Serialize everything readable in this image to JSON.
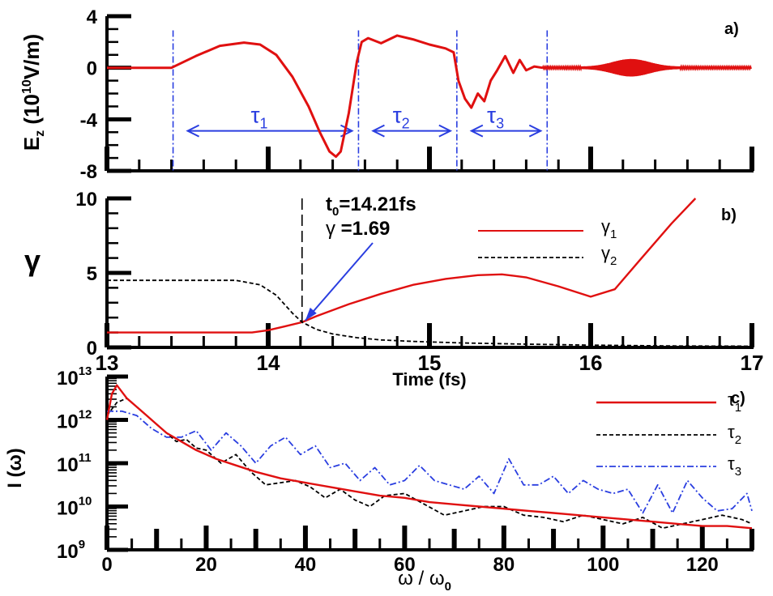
{
  "colors": {
    "red": "#e01010",
    "blue": "#2a3ee0",
    "black": "#000000"
  },
  "chart_data": [
    {
      "type": "line",
      "panel_label": "a)",
      "ylabel": "E_z (10^10 V/m)",
      "ylabel_parts": {
        "main": "E",
        "sub": "z",
        "open": "(10",
        "sup": "10",
        "close": "V/m)"
      },
      "xlim": [
        13,
        17
      ],
      "ylim": [
        -8,
        4
      ],
      "yticks": [
        "-8",
        "-4",
        "0",
        "4"
      ],
      "ytick_values": [
        -8,
        -4,
        0,
        4
      ],
      "series": [
        {
          "color": "#e01010",
          "x": [
            13.0,
            13.4,
            13.55,
            13.7,
            13.85,
            13.95,
            14.05,
            14.15,
            14.25,
            14.32,
            14.38,
            14.42,
            14.45,
            14.5,
            14.55,
            14.58,
            14.62,
            14.7,
            14.8,
            14.9,
            15.0,
            15.1,
            15.15,
            15.18,
            15.22,
            15.26,
            15.3,
            15.34,
            15.38,
            15.42,
            15.47,
            15.52,
            15.56,
            15.6,
            15.65,
            15.7
          ],
          "y": [
            0,
            0,
            0.9,
            1.7,
            1.95,
            1.8,
            1.0,
            -0.7,
            -3.0,
            -5.0,
            -6.5,
            -6.9,
            -6.5,
            -3.5,
            0.5,
            2.0,
            2.3,
            1.9,
            2.5,
            2.2,
            1.8,
            1.5,
            1.2,
            -1.0,
            -2.4,
            -3.1,
            -2.0,
            -2.6,
            -1.0,
            -0.2,
            0.9,
            -0.4,
            0.6,
            -0.2,
            0.1,
            0
          ]
        }
      ],
      "oscillation": {
        "x_range": [
          15.7,
          17.0
        ],
        "peak_x": 16.25,
        "peak_amplitude": 0.6
      },
      "markers": {
        "dash_dot_x": [
          13.41,
          14.56,
          15.17,
          15.73
        ],
        "arrow_y": -4.9,
        "spans": [
          {
            "label": "τ",
            "sub": "1",
            "from": 13.41,
            "to": 14.56
          },
          {
            "label": "τ",
            "sub": "2",
            "from": 14.56,
            "to": 15.17
          },
          {
            "label": "τ",
            "sub": "3",
            "from": 15.17,
            "to": 15.73
          }
        ]
      }
    },
    {
      "type": "line",
      "panel_label": "b)",
      "ylabel": "γ",
      "xlabel": "Time (fs)",
      "xlim": [
        13,
        17
      ],
      "ylim": [
        0,
        10
      ],
      "xticks": [
        "13",
        "14",
        "15",
        "16",
        "17"
      ],
      "xtick_values": [
        13,
        14,
        15,
        16,
        17
      ],
      "yticks": [
        "0",
        "5",
        "10"
      ],
      "ytick_values": [
        0,
        5,
        10
      ],
      "series": [
        {
          "name_main": "γ",
          "name_sub": "1",
          "color": "#e01010",
          "style": "solid",
          "x": [
            13.0,
            13.5,
            13.9,
            14.0,
            14.1,
            14.21,
            14.3,
            14.5,
            14.7,
            14.9,
            15.1,
            15.3,
            15.45,
            15.6,
            15.8,
            16.0,
            16.15,
            16.3,
            16.5,
            16.65
          ],
          "y": [
            1.0,
            1.0,
            1.0,
            1.15,
            1.4,
            1.69,
            2.1,
            2.9,
            3.6,
            4.2,
            4.6,
            4.85,
            4.9,
            4.7,
            4.1,
            3.4,
            3.9,
            5.8,
            8.3,
            10.0
          ]
        },
        {
          "name_main": "γ",
          "name_sub": "2",
          "color": "#000000",
          "style": "dashed",
          "x": [
            13.0,
            13.4,
            13.8,
            13.95,
            14.05,
            14.15,
            14.21,
            14.3,
            14.4,
            14.55,
            14.7,
            14.9,
            15.2,
            15.6,
            16.0,
            16.5,
            17.0
          ],
          "y": [
            4.5,
            4.5,
            4.5,
            4.2,
            3.5,
            2.3,
            1.69,
            1.2,
            0.9,
            0.65,
            0.5,
            0.4,
            0.3,
            0.22,
            0.15,
            0.1,
            0.08
          ]
        }
      ],
      "annotation": {
        "line1_main": "t",
        "line1_sub": "0",
        "line1_rest": "=14.21fs",
        "line2_main": "γ",
        "line2_rest": " =1.69",
        "x": 14.21,
        "y": 1.69
      }
    },
    {
      "type": "line",
      "panel_label": "c)",
      "ylabel": "I (ω)",
      "xlabel": "ω / ω0",
      "xlabel_parts": {
        "main": "ω / ω",
        "sub": "0"
      },
      "xlim": [
        0,
        130
      ],
      "ylim_log10": [
        9,
        13
      ],
      "xticks": [
        "0",
        "20",
        "40",
        "60",
        "80",
        "100",
        "120"
      ],
      "xtick_values": [
        0,
        20,
        40,
        60,
        80,
        100,
        120
      ],
      "yticks": [
        {
          "base": "10",
          "exp": "9",
          "value": 9
        },
        {
          "base": "10",
          "exp": "10",
          "value": 10
        },
        {
          "base": "10",
          "exp": "11",
          "value": 11
        },
        {
          "base": "10",
          "exp": "12",
          "value": 12
        },
        {
          "base": "10",
          "exp": "13",
          "value": 13
        }
      ],
      "series": [
        {
          "name_main": "τ",
          "name_sub": "1",
          "color": "#e01010",
          "style": "solid",
          "x": [
            0,
            1,
            2,
            4,
            6,
            8,
            10,
            12,
            15,
            18,
            22,
            26,
            30,
            35,
            40,
            45,
            50,
            55,
            60,
            65,
            70,
            75,
            80,
            85,
            90,
            95,
            100,
            105,
            110,
            115,
            120,
            125,
            130
          ],
          "log10y": [
            12.0,
            12.6,
            12.8,
            12.5,
            12.3,
            12.1,
            11.9,
            11.7,
            11.5,
            11.3,
            11.1,
            10.95,
            10.8,
            10.65,
            10.55,
            10.45,
            10.35,
            10.25,
            10.2,
            10.1,
            10.05,
            10.0,
            9.95,
            9.9,
            9.85,
            9.8,
            9.75,
            9.7,
            9.65,
            9.6,
            9.55,
            9.55,
            9.5
          ]
        },
        {
          "name_main": "τ",
          "name_sub": "2",
          "color": "#000000",
          "style": "dashed",
          "x": [
            0,
            2,
            4,
            6,
            8,
            10,
            12,
            14,
            16,
            18,
            20,
            23,
            26,
            29,
            32,
            35,
            38,
            41,
            44,
            47,
            50,
            53,
            56,
            60,
            64,
            68,
            72,
            76,
            80,
            84,
            88,
            92,
            96,
            100,
            104,
            108,
            112,
            116,
            120,
            124,
            128,
            130
          ],
          "log10y": [
            12.1,
            12.4,
            12.5,
            12.3,
            12.1,
            11.9,
            11.7,
            11.5,
            11.55,
            11.35,
            11.3,
            11.0,
            11.2,
            10.8,
            10.5,
            10.55,
            10.6,
            10.45,
            10.2,
            10.4,
            10.15,
            10.0,
            10.25,
            10.3,
            10.05,
            9.8,
            9.9,
            10.0,
            10.0,
            9.8,
            9.75,
            9.65,
            9.8,
            9.7,
            9.6,
            9.75,
            9.5,
            9.6,
            9.7,
            9.8,
            9.7,
            9.6
          ]
        },
        {
          "name_main": "τ",
          "name_sub": "3",
          "color": "#2a3ee0",
          "style": "dashdot",
          "x": [
            0,
            3,
            6,
            9,
            12,
            15,
            18,
            21,
            24,
            27,
            30,
            33,
            36,
            39,
            42,
            45,
            48,
            51,
            54,
            57,
            60,
            63,
            66,
            69,
            72,
            75,
            78,
            81,
            84,
            87,
            90,
            93,
            96,
            99,
            102,
            105,
            108,
            111,
            114,
            117,
            120,
            123,
            126,
            129,
            130
          ],
          "log10y": [
            12.2,
            12.2,
            12.1,
            11.8,
            11.6,
            11.6,
            11.75,
            11.3,
            11.7,
            11.4,
            11.0,
            11.4,
            11.6,
            11.2,
            11.4,
            10.9,
            11.0,
            10.6,
            10.9,
            10.5,
            10.6,
            10.95,
            10.6,
            10.5,
            10.4,
            10.7,
            10.3,
            11.1,
            10.5,
            10.5,
            10.7,
            10.3,
            10.6,
            10.4,
            10.3,
            10.4,
            9.85,
            10.5,
            9.85,
            10.6,
            10.2,
            9.9,
            9.95,
            10.3,
            9.9
          ]
        }
      ],
      "legend_placement": "top-right"
    }
  ]
}
